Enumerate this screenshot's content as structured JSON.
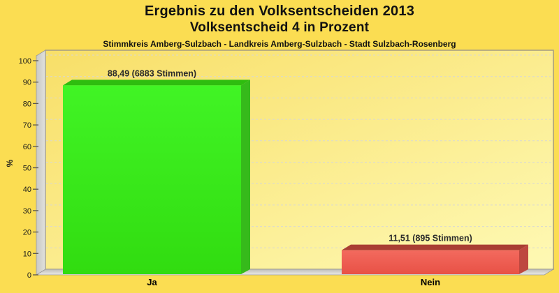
{
  "chart_data": {
    "type": "bar",
    "style": "3d",
    "title": "Ergebnis zu den Volksentscheiden 2013",
    "subtitle": "Volksentscheid 4 in Prozent",
    "subtitle2": "Stimmkreis Amberg-Sulzbach - Landkreis Amberg-Sulzbach - Stadt Sulzbach-Rosenberg",
    "categories": [
      "Ja",
      "Nein"
    ],
    "values": [
      88.49,
      11.51
    ],
    "votes": [
      6883,
      895
    ],
    "value_labels": [
      "88,49 (6883 Stimmen)",
      "11,51 (895 Stimmen)"
    ],
    "xlabel": "",
    "ylabel": "%",
    "ylim": [
      0,
      102
    ],
    "yticks": [
      0,
      10,
      20,
      30,
      40,
      50,
      60,
      70,
      80,
      90,
      100
    ],
    "grid": "dashed-horizontal",
    "legend": "none",
    "bar_colors": [
      {
        "front_from": "#41F425",
        "front_to": "#31DC10",
        "top": "#2EBD0F",
        "side": "#36BA1B"
      },
      {
        "front_from": "#F36A5E",
        "front_to": "#E85146",
        "top": "#A93E33",
        "side": "#BE4840"
      }
    ]
  },
  "colors": {
    "page_bg": "#FBDD52",
    "wall_from": "#F8DF68",
    "wall_to": "#FEF9B4",
    "plot_border": "#A9A083",
    "wall_edge": "#9B9B97",
    "side_wall_from": "#C9C9C5",
    "side_wall_to": "#E0E0DC",
    "floor_from": "#BEBEBA",
    "floor_to": "#EAEAE6",
    "gridline": "#D8D8D4",
    "tick": "#5A564E",
    "text": "#1A1A1A",
    "value_label_text": "#2B2B2B",
    "category_text": "#000000"
  }
}
